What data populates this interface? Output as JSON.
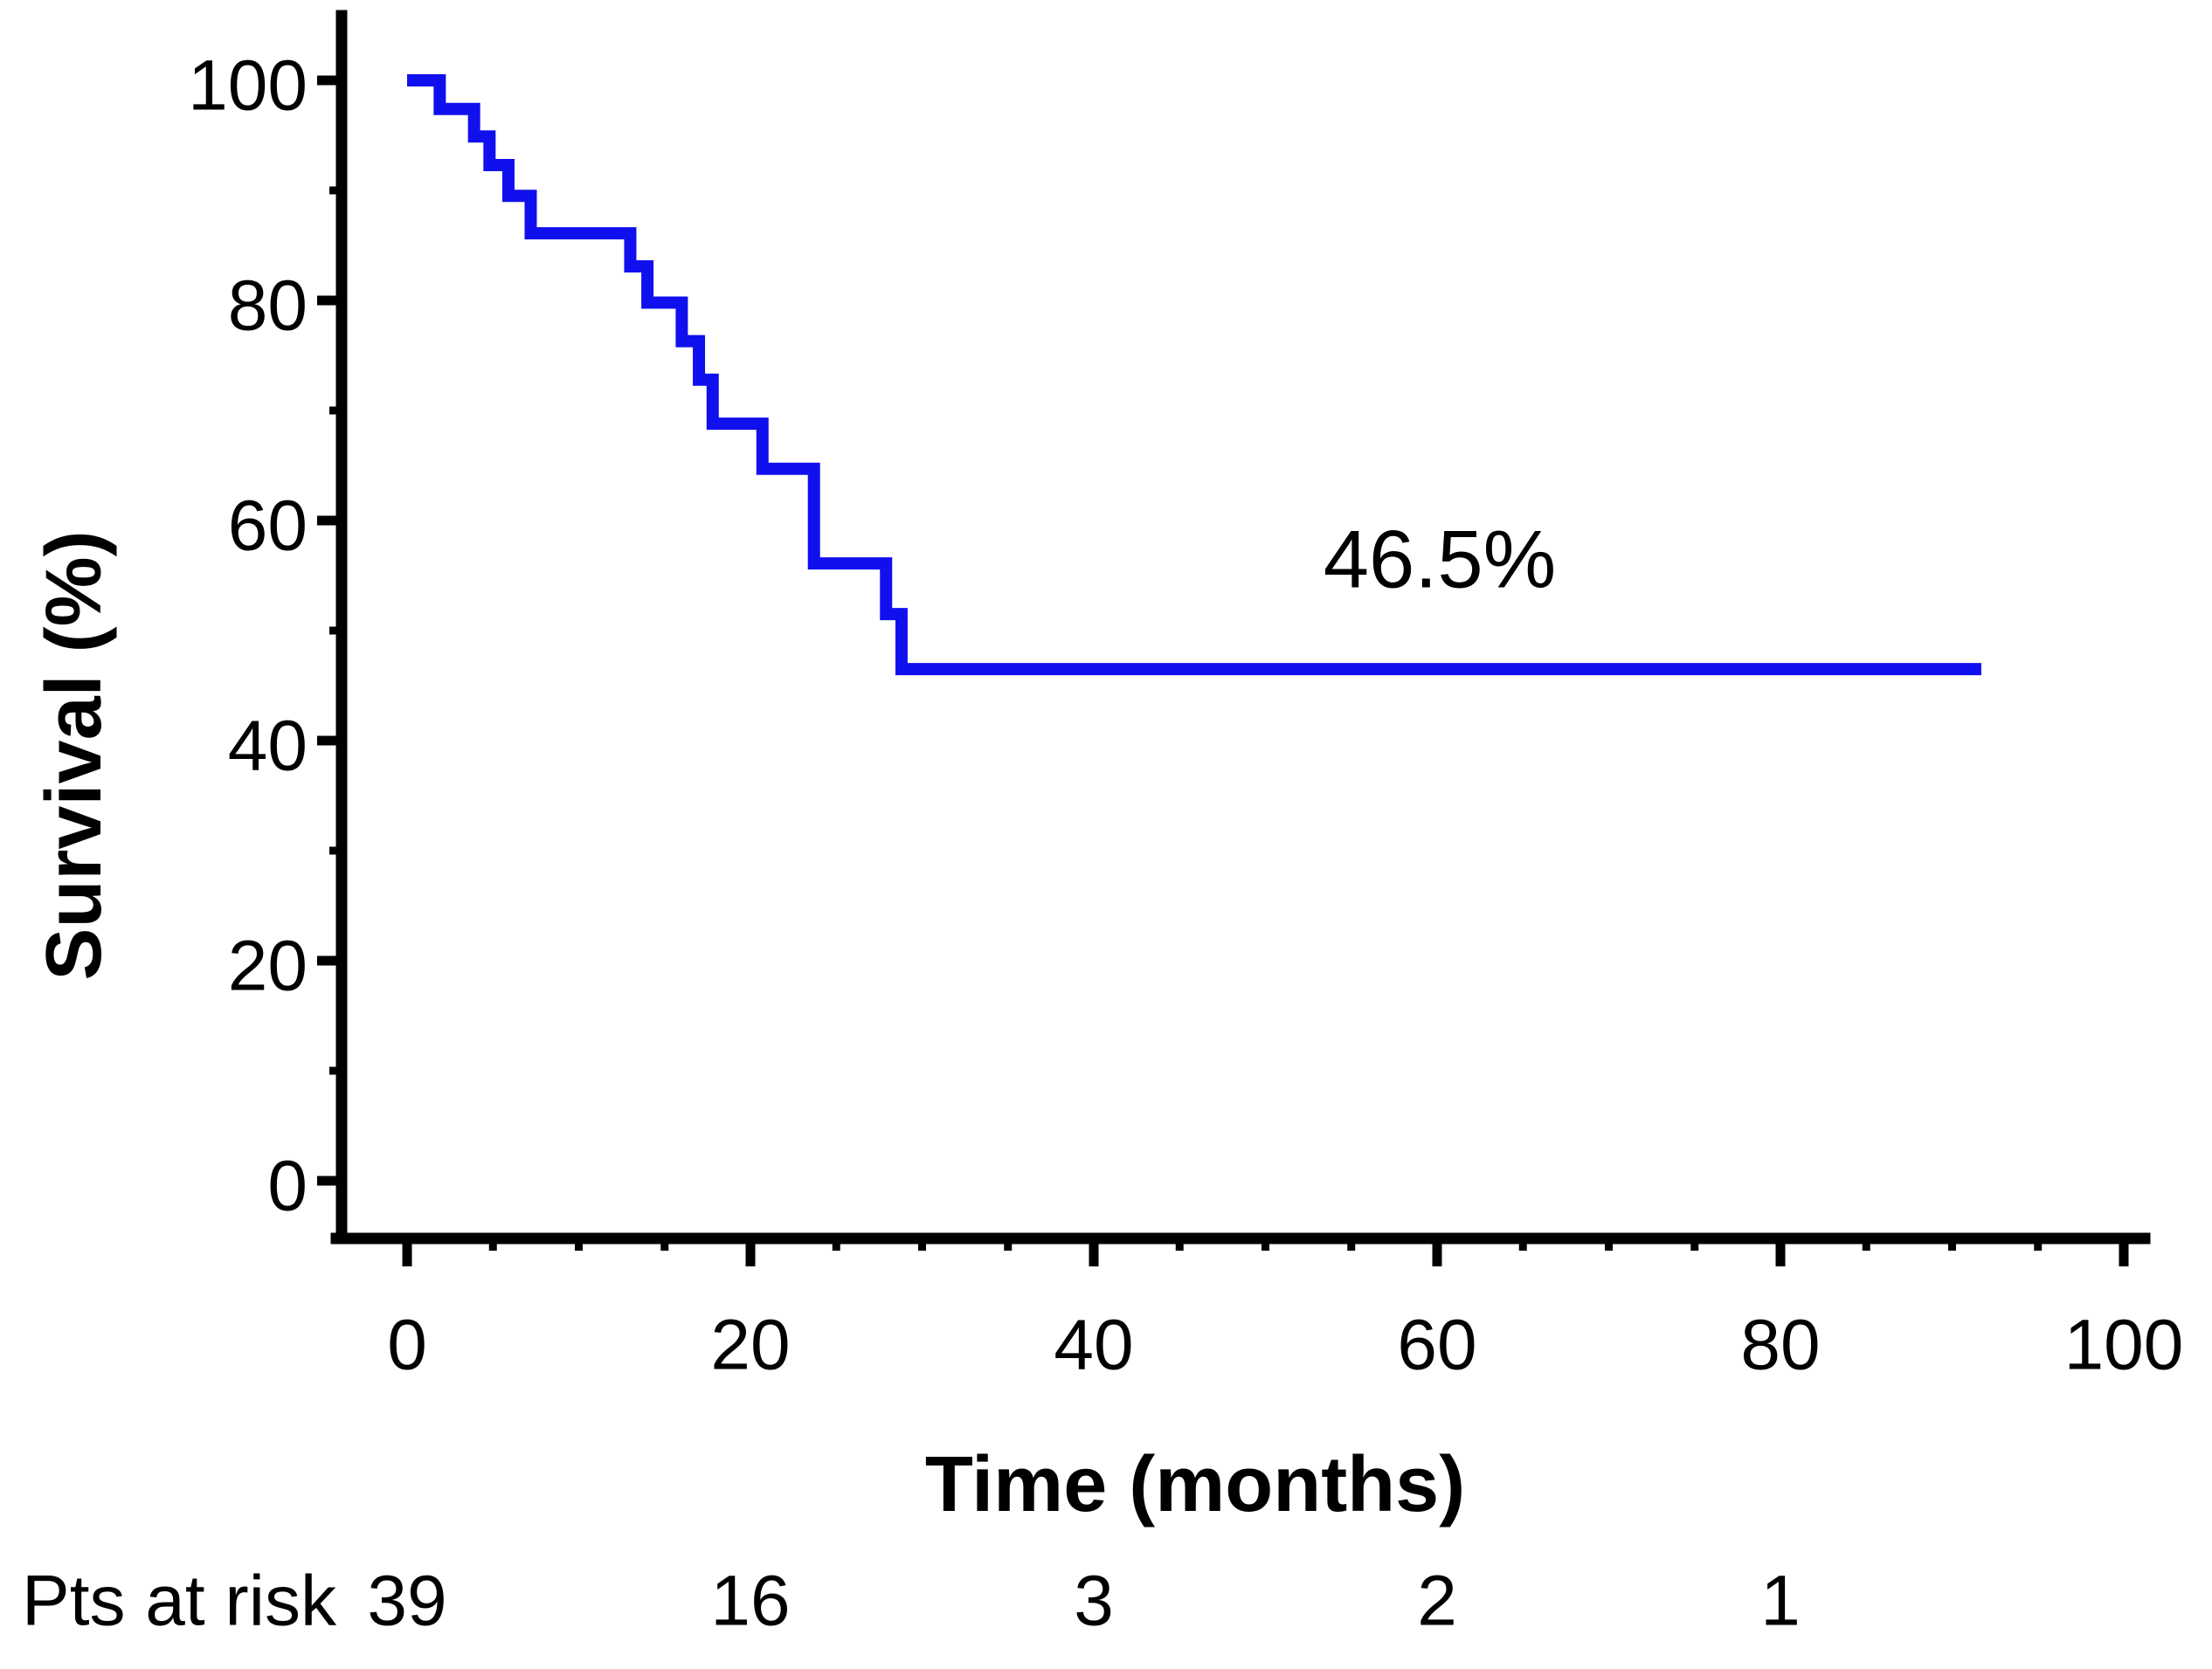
{
  "figure": {
    "y_axis_title": "Survival (%)",
    "x_axis_title": "Time (months)",
    "annotation_text": "46.5%",
    "risk_row_label": "Pts at risk"
  },
  "chart_data": {
    "type": "line",
    "subtype": "kaplan-meier-step-curve",
    "title": "",
    "xlabel": "Time (months)",
    "ylabel": "Survival (%)",
    "xlim": [
      0,
      100
    ],
    "ylim": [
      0,
      100
    ],
    "x_major_ticks": [
      0,
      20,
      40,
      60,
      80,
      100
    ],
    "x_minor_tick_step": 5,
    "y_major_ticks": [
      0,
      20,
      40,
      60,
      80,
      100
    ],
    "y_minor_tick_step": 10,
    "grid": false,
    "legend": "none",
    "line_color": "#1010EE",
    "axis_color": "#000000",
    "annotation": {
      "text": "46.5%",
      "x": 60,
      "y": 56.5
    },
    "series": [
      {
        "name": "Survival",
        "comment": "value s holds from t until the next point's t (right-continuous KM steps)",
        "points": [
          {
            "t": 0,
            "s": 100
          },
          {
            "t": 1.9,
            "s": 97.4
          },
          {
            "t": 3.9,
            "s": 94.9
          },
          {
            "t": 4.8,
            "s": 92.3
          },
          {
            "t": 5.9,
            "s": 89.5
          },
          {
            "t": 7.2,
            "s": 86.1
          },
          {
            "t": 13.0,
            "s": 83.1
          },
          {
            "t": 14.0,
            "s": 79.8
          },
          {
            "t": 16.0,
            "s": 76.3
          },
          {
            "t": 17.0,
            "s": 72.8
          },
          {
            "t": 17.8,
            "s": 68.8
          },
          {
            "t": 20.7,
            "s": 64.7
          },
          {
            "t": 23.7,
            "s": 56.1
          },
          {
            "t": 27.9,
            "s": 51.5
          },
          {
            "t": 28.8,
            "s": 46.5
          }
        ],
        "end_time": 91.7,
        "final_value": 46.5
      }
    ],
    "at_risk": {
      "label": "Pts at risk",
      "times": [
        0,
        20,
        40,
        60,
        80
      ],
      "counts": [
        39,
        16,
        3,
        2,
        1
      ]
    }
  }
}
